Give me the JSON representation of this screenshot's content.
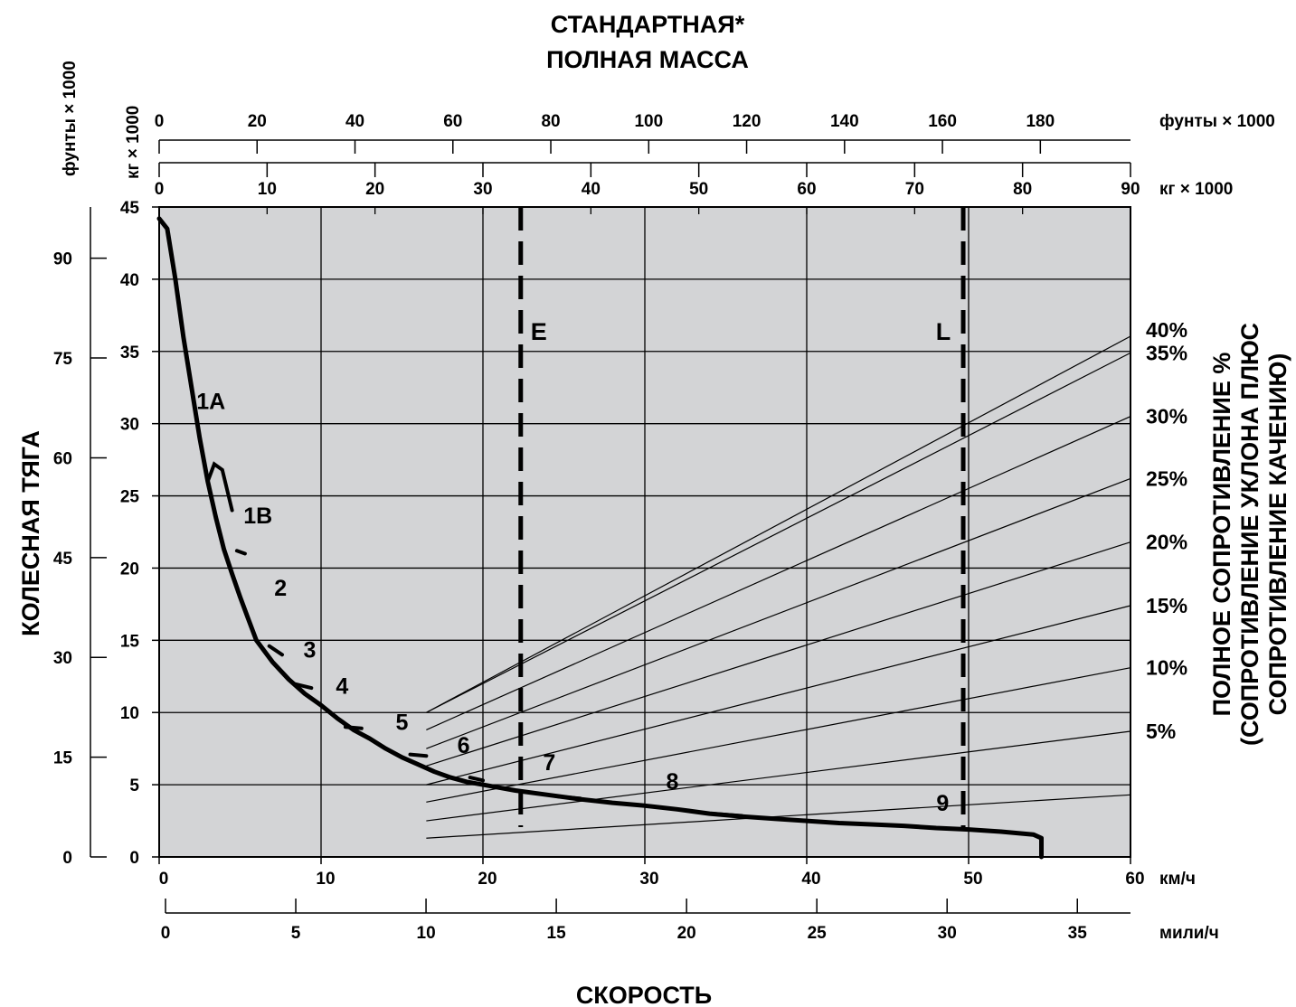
{
  "title_line1": "СТАНДАРТНАЯ*",
  "title_line2": "ПОЛНАЯ МАССА",
  "left_axis_title": "КОЛЕСНАЯ ТЯГА",
  "right_axis_title_lines": [
    "ПОЛНОЕ СОПРОТИВЛЕНИЕ %",
    "(СОПРОТИВЛЕНИЕ УКЛОНА ПЛЮС",
    "СОПРОТИВЛЕНИЕ КАЧЕНИЮ)"
  ],
  "bottom_axis_title": "СКОРОСТЬ",
  "units": {
    "lb_vertical": "фунты × 1000",
    "kg_vertical": "кг × 1000",
    "lb_top": "фунты × 1000",
    "kg_top": "кг × 1000",
    "kmh": "км/ч",
    "mph": "мили/ч"
  },
  "colors": {
    "plot_bg": "#d3d4d6",
    "curve": "#000000",
    "grid": "#000000"
  },
  "chart_data": {
    "type": "line",
    "x_axis": {
      "label": "СКОРОСТЬ",
      "unit_kmh": "км/ч",
      "range_kmh": [
        0,
        60
      ],
      "ticks_kmh": [
        0,
        10,
        20,
        30,
        40,
        50,
        60
      ],
      "unit_mph": "мили/ч",
      "ticks_mph": [
        0,
        5,
        10,
        15,
        20,
        25,
        30,
        35
      ]
    },
    "y_axis": {
      "label": "КОЛЕСНАЯ ТЯГА",
      "unit_kg": "кг × 1000",
      "range_kg": [
        0,
        45
      ],
      "ticks_kg": [
        0,
        5,
        10,
        15,
        20,
        25,
        30,
        35,
        40,
        45
      ],
      "unit_lb": "фунты × 1000",
      "ticks_lb": [
        0,
        15,
        30,
        45,
        60,
        75,
        90
      ]
    },
    "mass_axis": {
      "title": "СТАНДАРТНАЯ* ПОЛНАЯ МАССА",
      "range_kg": [
        0,
        90
      ],
      "ticks_kg": [
        0,
        10,
        20,
        30,
        40,
        50,
        60,
        70,
        80,
        90
      ],
      "unit_kg": "кг × 1000",
      "ticks_lb": [
        0,
        20,
        40,
        60,
        80,
        100,
        120,
        140,
        160,
        180
      ],
      "unit_lb": "фунты × 1000"
    },
    "rimpull_curve": {
      "name": "Колесная тяга",
      "points_kmh_kg": [
        [
          0.0,
          44.2
        ],
        [
          0.5,
          43.5
        ],
        [
          1.0,
          40.0
        ],
        [
          1.5,
          36.0
        ],
        [
          2.0,
          32.5
        ],
        [
          2.5,
          29.0
        ],
        [
          3.0,
          26.0
        ],
        [
          3.5,
          23.5
        ],
        [
          4.0,
          21.3
        ],
        [
          4.5,
          19.6
        ],
        [
          5.0,
          18.0
        ],
        [
          5.5,
          16.5
        ],
        [
          6.0,
          15.0
        ],
        [
          7.0,
          13.5
        ],
        [
          8.0,
          12.3
        ],
        [
          9.0,
          11.3
        ],
        [
          10.0,
          10.5
        ],
        [
          11.0,
          9.6
        ],
        [
          12.0,
          8.8
        ],
        [
          13.0,
          8.2
        ],
        [
          14.0,
          7.5
        ],
        [
          15.0,
          6.9
        ],
        [
          16.0,
          6.4
        ],
        [
          17.0,
          5.9
        ],
        [
          18.0,
          5.5
        ],
        [
          19.0,
          5.2
        ],
        [
          20.0,
          5.0
        ],
        [
          21.0,
          4.8
        ],
        [
          22.0,
          4.6
        ],
        [
          24.0,
          4.3
        ],
        [
          26.0,
          4.0
        ],
        [
          28.0,
          3.75
        ],
        [
          30.0,
          3.55
        ],
        [
          32.0,
          3.3
        ],
        [
          34.0,
          3.0
        ],
        [
          36.0,
          2.8
        ],
        [
          38.0,
          2.65
        ],
        [
          40.0,
          2.5
        ],
        [
          42.0,
          2.35
        ],
        [
          44.0,
          2.25
        ],
        [
          46.0,
          2.15
        ],
        [
          48.0,
          2.0
        ],
        [
          50.0,
          1.9
        ],
        [
          52.0,
          1.75
        ],
        [
          54.0,
          1.55
        ],
        [
          54.5,
          1.3
        ],
        [
          54.5,
          0.0
        ]
      ]
    },
    "gears": [
      {
        "label": "1A",
        "kmh": 3.2,
        "kg": 31.0
      },
      {
        "label": "1B",
        "kmh": 6.1,
        "kg": 23.1
      },
      {
        "label": "2",
        "kmh": 7.5,
        "kg": 18.1
      },
      {
        "label": "3",
        "kmh": 9.3,
        "kg": 13.8
      },
      {
        "label": "4",
        "kmh": 11.3,
        "kg": 11.3
      },
      {
        "label": "5",
        "kmh": 15.0,
        "kg": 8.8
      },
      {
        "label": "6",
        "kmh": 18.8,
        "kg": 7.2
      },
      {
        "label": "7",
        "kmh": 24.1,
        "kg": 6.0
      },
      {
        "label": "8",
        "kmh": 31.7,
        "kg": 4.7
      },
      {
        "label": "9",
        "kmh": 48.4,
        "kg": 3.2
      }
    ],
    "resistance_lines": [
      {
        "label": "",
        "start_kmh": 16.5,
        "start_kg": 1.3,
        "end_kmh": 60,
        "end_kg": 4.3
      },
      {
        "label": "5%",
        "start_kmh": 16.5,
        "start_kg": 2.5,
        "end_kmh": 60,
        "end_kg": 8.7
      },
      {
        "label": "10%",
        "start_kmh": 16.5,
        "start_kg": 3.8,
        "end_kmh": 60,
        "end_kg": 13.1
      },
      {
        "label": "15%",
        "start_kmh": 16.5,
        "start_kg": 5.0,
        "end_kmh": 60,
        "end_kg": 17.4
      },
      {
        "label": "20%",
        "start_kmh": 16.5,
        "start_kg": 6.3,
        "end_kmh": 60,
        "end_kg": 21.8
      },
      {
        "label": "25%",
        "start_kmh": 16.5,
        "start_kg": 7.5,
        "end_kmh": 60,
        "end_kg": 26.2
      },
      {
        "label": "30%",
        "start_kmh": 16.5,
        "start_kg": 8.8,
        "end_kmh": 60,
        "end_kg": 30.5
      },
      {
        "label": "35%",
        "start_kmh": 16.5,
        "start_kg": 10.0,
        "end_kmh": 60,
        "end_kg": 34.9
      }
    ],
    "resistance_label_40": "40%",
    "mass_markers": [
      {
        "label": "E",
        "mass_kg": 33.5
      },
      {
        "label": "L",
        "mass_kg": 74.5
      }
    ],
    "grid": true
  }
}
